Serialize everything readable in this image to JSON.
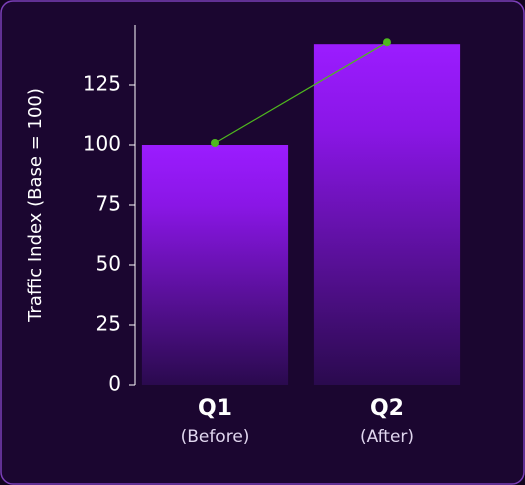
{
  "chart_data": {
    "type": "bar",
    "y_label": "Traffic Index (Base = 100)",
    "categories": [
      "Q1",
      "Q2"
    ],
    "category_notes": [
      "(Before)",
      "(After)"
    ],
    "series": [
      {
        "type": "bar",
        "color": "#9b1cff",
        "values": [
          100,
          142
        ]
      },
      {
        "type": "line",
        "color": "#4fb81e",
        "values": [
          100,
          142
        ]
      }
    ],
    "ylim": [
      0,
      150
    ],
    "yticks": [
      0,
      25,
      50,
      75,
      100,
      125
    ]
  }
}
